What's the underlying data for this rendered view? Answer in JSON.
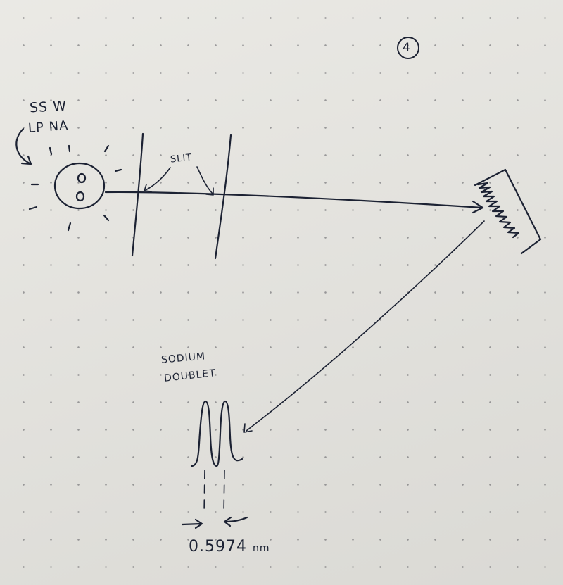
{
  "page_number": "4",
  "source": {
    "label_line1": "SS W",
    "label_line2": "LP NA"
  },
  "slit_label": "SLIT",
  "doublet": {
    "label_line1": "SODIUM",
    "label_line2": "DOUBLET"
  },
  "separation": {
    "value": "0.5974",
    "unit": "nm"
  },
  "ink_color": "#1c2233",
  "paper_color": "#e8e7e2"
}
